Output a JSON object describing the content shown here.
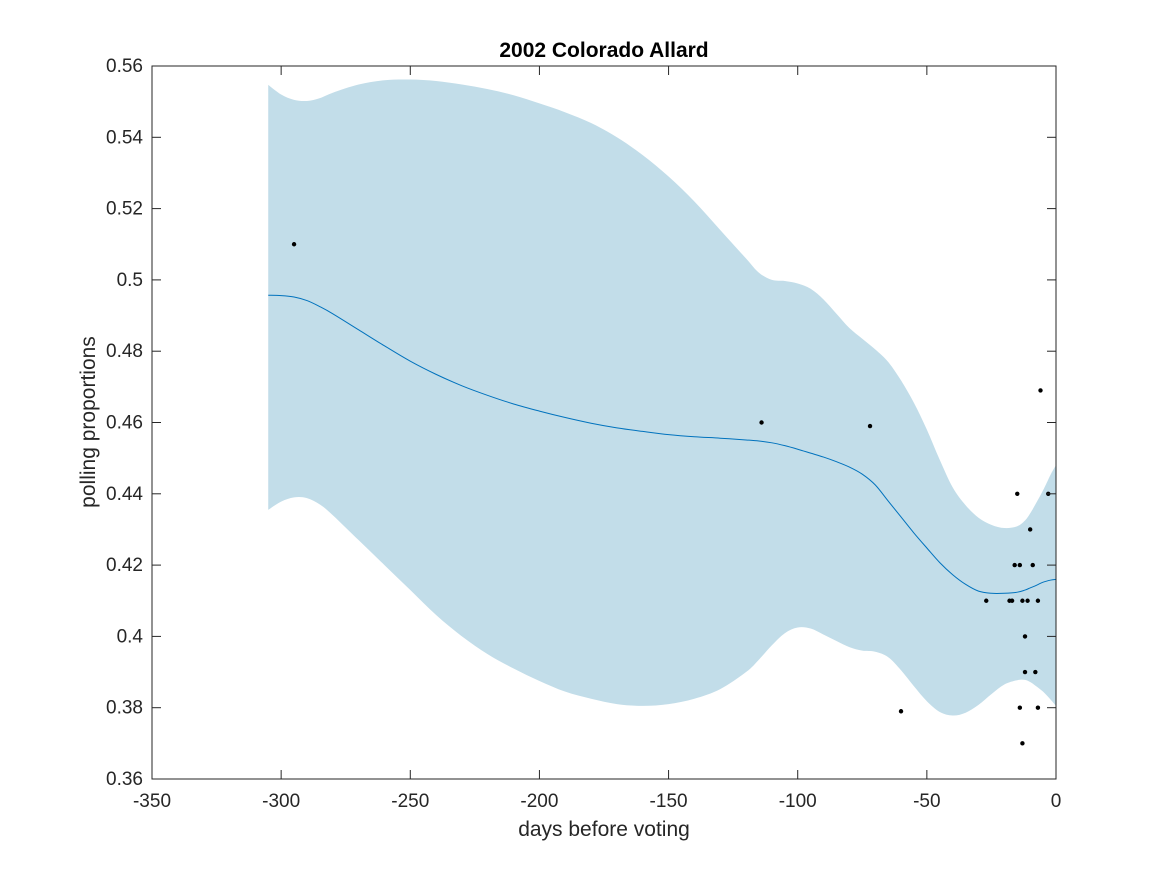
{
  "chart_data": {
    "type": "scatter",
    "title": "2002 Colorado Allard",
    "xlabel": "days before voting",
    "ylabel": "polling proportions",
    "xlim": [
      -350,
      0
    ],
    "ylim": [
      0.36,
      0.56
    ],
    "xticks": [
      -350,
      -300,
      -250,
      -200,
      -150,
      -100,
      -50,
      0
    ],
    "xtick_labels": [
      "-350",
      "-300",
      "-250",
      "-200",
      "-150",
      "-100",
      "-50",
      "0"
    ],
    "yticks": [
      0.36,
      0.38,
      0.4,
      0.42,
      0.44,
      0.46,
      0.48,
      0.5,
      0.52,
      0.54,
      0.56
    ],
    "ytick_labels": [
      "0.36",
      "0.38",
      "0.4",
      "0.42",
      "0.44",
      "0.46",
      "0.48",
      "0.5",
      "0.52",
      "0.54",
      "0.56"
    ],
    "grid": false,
    "colors": {
      "band": "#c2dde9",
      "mean_line": "#0072bd",
      "points": "#000000",
      "axes": "#262626"
    },
    "confidence_band": {
      "x": [
        -305,
        -300,
        -295,
        -290,
        -285,
        -280,
        -270,
        -260,
        -250,
        -240,
        -230,
        -220,
        -210,
        -200,
        -190,
        -180,
        -170,
        -160,
        -150,
        -140,
        -130,
        -120,
        -115,
        -110,
        -105,
        -100,
        -95,
        -90,
        -85,
        -80,
        -75,
        -70,
        -65,
        -60,
        -55,
        -50,
        -45,
        -40,
        -35,
        -30,
        -25,
        -20,
        -15,
        -12,
        -10,
        -8,
        -5,
        -2,
        0
      ],
      "upper": [
        0.5547,
        0.552,
        0.5505,
        0.5502,
        0.551,
        0.5525,
        0.5548,
        0.556,
        0.5562,
        0.5558,
        0.5548,
        0.5535,
        0.5518,
        0.5495,
        0.547,
        0.544,
        0.54,
        0.535,
        0.529,
        0.522,
        0.514,
        0.506,
        0.502,
        0.5,
        0.4997,
        0.499,
        0.4975,
        0.4945,
        0.4905,
        0.4865,
        0.4835,
        0.4805,
        0.477,
        0.4718,
        0.4655,
        0.458,
        0.4495,
        0.4418,
        0.4368,
        0.4333,
        0.4313,
        0.4304,
        0.4309,
        0.4325,
        0.4345,
        0.437,
        0.441,
        0.4455,
        0.448
      ],
      "lower": [
        0.4355,
        0.4378,
        0.439,
        0.4388,
        0.437,
        0.434,
        0.427,
        0.42,
        0.413,
        0.406,
        0.4,
        0.395,
        0.391,
        0.3875,
        0.3845,
        0.3825,
        0.381,
        0.3805,
        0.381,
        0.3825,
        0.3852,
        0.39,
        0.3935,
        0.3975,
        0.4009,
        0.4025,
        0.4022,
        0.4005,
        0.3987,
        0.397,
        0.396,
        0.3957,
        0.3942,
        0.3905,
        0.386,
        0.3818,
        0.3788,
        0.3778,
        0.3786,
        0.3808,
        0.3838,
        0.3865,
        0.3877,
        0.3878,
        0.3872,
        0.3862,
        0.3845,
        0.3822,
        0.3805
      ]
    },
    "mean_line": {
      "x": [
        -305,
        -300,
        -295,
        -290,
        -285,
        -280,
        -270,
        -260,
        -250,
        -240,
        -230,
        -220,
        -210,
        -200,
        -190,
        -180,
        -170,
        -160,
        -150,
        -140,
        -130,
        -120,
        -115,
        -110,
        -105,
        -100,
        -95,
        -90,
        -85,
        -80,
        -75,
        -70,
        -65,
        -60,
        -55,
        -50,
        -45,
        -40,
        -35,
        -30,
        -25,
        -20,
        -15,
        -12,
        -10,
        -8,
        -5,
        -2,
        0
      ],
      "y": [
        0.4957,
        0.4956,
        0.4952,
        0.4942,
        0.4925,
        0.4905,
        0.486,
        0.4815,
        0.4772,
        0.4735,
        0.4703,
        0.4676,
        0.4652,
        0.4632,
        0.4614,
        0.4598,
        0.4585,
        0.4575,
        0.4566,
        0.456,
        0.4556,
        0.4551,
        0.4548,
        0.4543,
        0.4535,
        0.4525,
        0.4514,
        0.4503,
        0.449,
        0.4475,
        0.4455,
        0.4425,
        0.438,
        0.4335,
        0.429,
        0.4248,
        0.4207,
        0.4173,
        0.4146,
        0.4127,
        0.4121,
        0.4121,
        0.4124,
        0.413,
        0.4136,
        0.4142,
        0.4152,
        0.4158,
        0.416
      ]
    },
    "points": [
      {
        "x": -295,
        "y": 0.51
      },
      {
        "x": -114,
        "y": 0.46
      },
      {
        "x": -72,
        "y": 0.459
      },
      {
        "x": -60,
        "y": 0.379
      },
      {
        "x": -27,
        "y": 0.41
      },
      {
        "x": -18,
        "y": 0.41
      },
      {
        "x": -17,
        "y": 0.41
      },
      {
        "x": -16,
        "y": 0.42
      },
      {
        "x": -15,
        "y": 0.44
      },
      {
        "x": -14,
        "y": 0.42
      },
      {
        "x": -14,
        "y": 0.38
      },
      {
        "x": -13,
        "y": 0.41
      },
      {
        "x": -13,
        "y": 0.37
      },
      {
        "x": -12,
        "y": 0.4
      },
      {
        "x": -12,
        "y": 0.39
      },
      {
        "x": -11,
        "y": 0.41
      },
      {
        "x": -10,
        "y": 0.43
      },
      {
        "x": -9,
        "y": 0.42
      },
      {
        "x": -8,
        "y": 0.39
      },
      {
        "x": -7,
        "y": 0.41
      },
      {
        "x": -7,
        "y": 0.38
      },
      {
        "x": -6,
        "y": 0.469
      },
      {
        "x": -3,
        "y": 0.44
      }
    ]
  }
}
